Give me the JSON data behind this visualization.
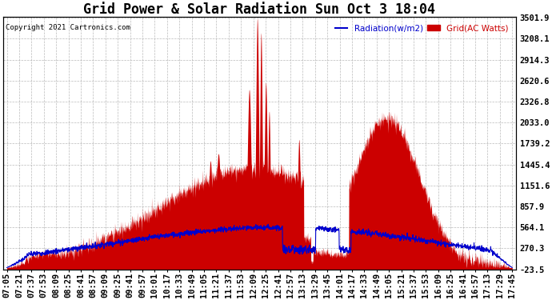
{
  "title": "Grid Power & Solar Radiation Sun Oct 3 18:04",
  "copyright": "Copyright 2021 Cartronics.com",
  "legend_radiation": "Radiation(w/m2)",
  "legend_grid": "Grid(AC Watts)",
  "ylabel_right_ticks": [
    3501.9,
    3208.1,
    2914.3,
    2620.6,
    2326.8,
    2033.0,
    1739.2,
    1445.4,
    1151.6,
    857.9,
    564.1,
    270.3,
    -23.5
  ],
  "ymin": -23.5,
  "ymax": 3501.9,
  "background_color": "#ffffff",
  "grid_color": "#aaaaaa",
  "radiation_color": "#0000cc",
  "grid_power_color": "#cc0000",
  "title_fontsize": 12,
  "tick_fontsize": 7.5,
  "x_tick_labels": [
    "07:05",
    "07:21",
    "07:37",
    "07:53",
    "08:09",
    "08:25",
    "08:41",
    "08:57",
    "09:09",
    "09:25",
    "09:41",
    "09:57",
    "10:01",
    "10:17",
    "10:33",
    "10:49",
    "11:05",
    "11:21",
    "11:37",
    "11:53",
    "12:09",
    "12:25",
    "12:41",
    "12:57",
    "13:13",
    "13:29",
    "13:45",
    "14:01",
    "14:17",
    "14:33",
    "14:49",
    "15:05",
    "15:21",
    "15:37",
    "15:53",
    "16:09",
    "16:25",
    "16:41",
    "16:57",
    "17:13",
    "17:29",
    "17:45"
  ]
}
